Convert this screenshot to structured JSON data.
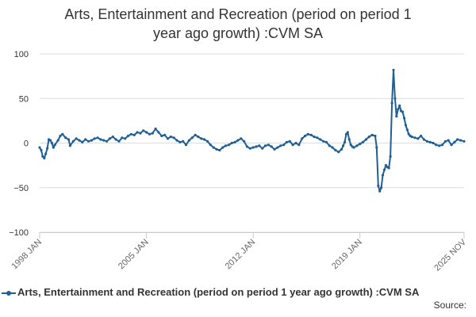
{
  "chart_data": {
    "type": "line",
    "title_lines": [
      "Arts, Entertainment and Recreation (period on period 1",
      "year ago growth) :CVM SA"
    ],
    "xlabel": "",
    "ylabel": "",
    "ylim": [
      -100,
      100
    ],
    "y_ticks": [
      100,
      50,
      0,
      -50,
      -100
    ],
    "y_tick_labels": [
      "100",
      "50",
      "0",
      "−50",
      "−100"
    ],
    "x_range": [
      1998.0,
      2025.83
    ],
    "x_tick_positions": [
      1998.0,
      2005.0,
      2012.0,
      2019.0,
      2025.83
    ],
    "x_tick_labels": [
      "1998 JAN",
      "2005 JAN",
      "2012 JAN",
      "2019 JAN",
      "2025 NOV"
    ],
    "grid": true,
    "legend_position": "bottom",
    "series": [
      {
        "name": "Arts, Entertainment and Recreation (period on period 1 year ago growth) :CVM SA",
        "color": "#206095",
        "points": [
          [
            1998.0,
            -5
          ],
          [
            1998.1,
            -8
          ],
          [
            1998.2,
            -15
          ],
          [
            1998.3,
            -17
          ],
          [
            1998.4,
            -12
          ],
          [
            1998.5,
            -6
          ],
          [
            1998.6,
            4
          ],
          [
            1998.7,
            3
          ],
          [
            1998.8,
            0
          ],
          [
            1998.9,
            -5
          ],
          [
            1999.0,
            -2
          ],
          [
            1999.2,
            3
          ],
          [
            1999.35,
            8
          ],
          [
            1999.5,
            10
          ],
          [
            1999.7,
            6
          ],
          [
            1999.9,
            4
          ],
          [
            2000.0,
            -3
          ],
          [
            2000.2,
            2
          ],
          [
            2000.4,
            5
          ],
          [
            2000.6,
            3
          ],
          [
            2000.8,
            1
          ],
          [
            2001.0,
            4
          ],
          [
            2001.2,
            2
          ],
          [
            2001.4,
            3
          ],
          [
            2001.6,
            5
          ],
          [
            2001.8,
            6
          ],
          [
            2002.0,
            4
          ],
          [
            2002.2,
            3
          ],
          [
            2002.4,
            2
          ],
          [
            2002.6,
            5
          ],
          [
            2002.8,
            7
          ],
          [
            2003.0,
            4
          ],
          [
            2003.2,
            2
          ],
          [
            2003.4,
            6
          ],
          [
            2003.6,
            5
          ],
          [
            2003.8,
            8
          ],
          [
            2004.0,
            10
          ],
          [
            2004.2,
            9
          ],
          [
            2004.4,
            12
          ],
          [
            2004.6,
            11
          ],
          [
            2004.8,
            14
          ],
          [
            2005.0,
            12
          ],
          [
            2005.2,
            10
          ],
          [
            2005.4,
            11
          ],
          [
            2005.6,
            16
          ],
          [
            2005.8,
            12
          ],
          [
            2006.0,
            8
          ],
          [
            2006.2,
            9
          ],
          [
            2006.4,
            5
          ],
          [
            2006.6,
            7
          ],
          [
            2006.8,
            6
          ],
          [
            2007.0,
            3
          ],
          [
            2007.2,
            1
          ],
          [
            2007.4,
            2
          ],
          [
            2007.6,
            -2
          ],
          [
            2007.8,
            3
          ],
          [
            2008.0,
            6
          ],
          [
            2008.2,
            9
          ],
          [
            2008.4,
            7
          ],
          [
            2008.6,
            5
          ],
          [
            2008.8,
            4
          ],
          [
            2009.0,
            2
          ],
          [
            2009.2,
            -2
          ],
          [
            2009.4,
            -5
          ],
          [
            2009.6,
            -7
          ],
          [
            2009.8,
            -8
          ],
          [
            2010.0,
            -5
          ],
          [
            2010.2,
            -3
          ],
          [
            2010.4,
            -2
          ],
          [
            2010.6,
            0
          ],
          [
            2010.8,
            1
          ],
          [
            2011.0,
            3
          ],
          [
            2011.2,
            5
          ],
          [
            2011.4,
            2
          ],
          [
            2011.6,
            -4
          ],
          [
            2011.8,
            -6
          ],
          [
            2012.0,
            -5
          ],
          [
            2012.2,
            -4
          ],
          [
            2012.4,
            -3
          ],
          [
            2012.6,
            -6
          ],
          [
            2012.8,
            -3
          ],
          [
            2013.0,
            -2
          ],
          [
            2013.2,
            -4
          ],
          [
            2013.4,
            -7
          ],
          [
            2013.6,
            -5
          ],
          [
            2013.8,
            -3
          ],
          [
            2014.0,
            -2
          ],
          [
            2014.2,
            1
          ],
          [
            2014.4,
            2
          ],
          [
            2014.6,
            -2
          ],
          [
            2014.8,
            0
          ],
          [
            2015.0,
            -2
          ],
          [
            2015.2,
            5
          ],
          [
            2015.4,
            8
          ],
          [
            2015.6,
            10
          ],
          [
            2015.8,
            9
          ],
          [
            2016.0,
            7
          ],
          [
            2016.2,
            6
          ],
          [
            2016.4,
            4
          ],
          [
            2016.6,
            2
          ],
          [
            2016.8,
            1
          ],
          [
            2017.0,
            -3
          ],
          [
            2017.2,
            -5
          ],
          [
            2017.4,
            -8
          ],
          [
            2017.6,
            -10
          ],
          [
            2017.8,
            -7
          ],
          [
            2017.9,
            -3
          ],
          [
            2018.0,
            1
          ],
          [
            2018.1,
            10
          ],
          [
            2018.2,
            12
          ],
          [
            2018.3,
            4
          ],
          [
            2018.4,
            -2
          ],
          [
            2018.5,
            -4
          ],
          [
            2018.6,
            -5
          ],
          [
            2018.8,
            -3
          ],
          [
            2019.0,
            -1
          ],
          [
            2019.2,
            1
          ],
          [
            2019.4,
            4
          ],
          [
            2019.6,
            7
          ],
          [
            2019.8,
            9
          ],
          [
            2020.0,
            8
          ],
          [
            2020.1,
            -5
          ],
          [
            2020.2,
            -48
          ],
          [
            2020.3,
            -54
          ],
          [
            2020.4,
            -50
          ],
          [
            2020.5,
            -36
          ],
          [
            2020.6,
            -30
          ],
          [
            2020.7,
            -25
          ],
          [
            2020.8,
            -27
          ],
          [
            2020.9,
            -28
          ],
          [
            2021.0,
            -15
          ],
          [
            2021.1,
            45
          ],
          [
            2021.2,
            82
          ],
          [
            2021.3,
            50
          ],
          [
            2021.4,
            30
          ],
          [
            2021.5,
            38
          ],
          [
            2021.6,
            42
          ],
          [
            2021.7,
            36
          ],
          [
            2021.8,
            35
          ],
          [
            2021.9,
            28
          ],
          [
            2022.0,
            20
          ],
          [
            2022.1,
            15
          ],
          [
            2022.2,
            10
          ],
          [
            2022.3,
            8
          ],
          [
            2022.4,
            7
          ],
          [
            2022.6,
            6
          ],
          [
            2022.8,
            5
          ],
          [
            2023.0,
            8
          ],
          [
            2023.2,
            4
          ],
          [
            2023.4,
            2
          ],
          [
            2023.6,
            1
          ],
          [
            2023.8,
            0
          ],
          [
            2024.0,
            -2
          ],
          [
            2024.2,
            -3
          ],
          [
            2024.4,
            -2
          ],
          [
            2024.6,
            2
          ],
          [
            2024.8,
            3
          ],
          [
            2025.0,
            -2
          ],
          [
            2025.2,
            1
          ],
          [
            2025.4,
            4
          ],
          [
            2025.6,
            3
          ],
          [
            2025.83,
            2
          ]
        ]
      }
    ]
  },
  "legend": {
    "label": "Arts, Entertainment and Recreation (period on period 1 year ago growth) :CVM SA"
  },
  "source_text": "Source:"
}
